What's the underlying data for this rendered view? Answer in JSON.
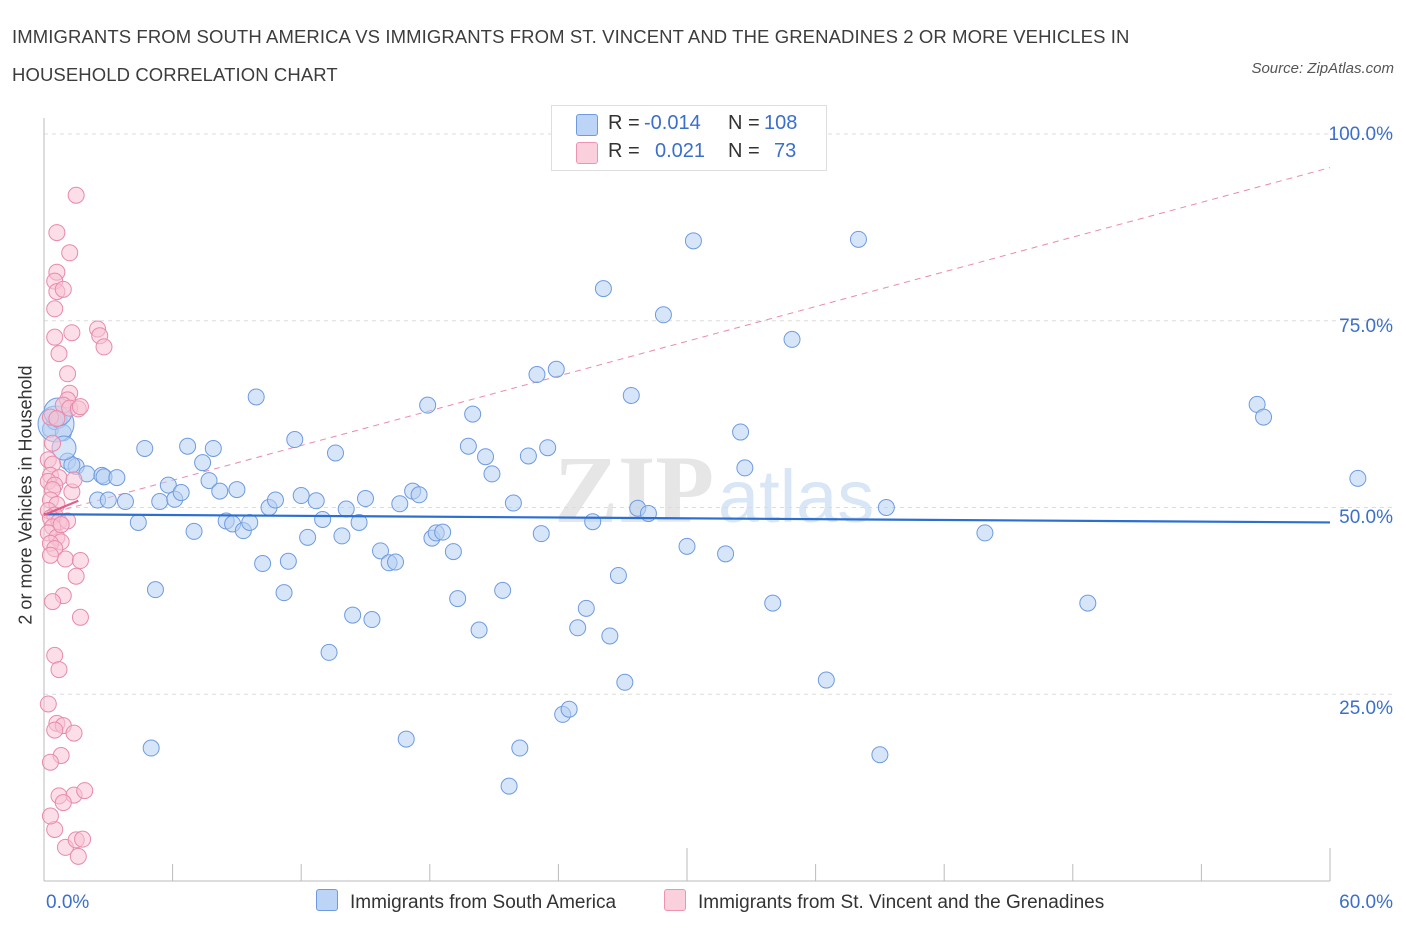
{
  "title": "IMMIGRANTS FROM SOUTH AMERICA VS IMMIGRANTS FROM ST. VINCENT AND THE GRENADINES 2 OR MORE VEHICLES IN HOUSEHOLD CORRELATION CHART",
  "source": "Source: ZipAtlas.com",
  "watermark": {
    "zip": "ZIP",
    "atlas": "atlas"
  },
  "legend": {
    "r_label": "R =",
    "n_label": "N =",
    "rows": [
      {
        "r": "-0.014",
        "n": "108",
        "color": "#aac8f0"
      },
      {
        "r": "0.021",
        "n": "73",
        "color": "#f6b8cc"
      }
    ]
  },
  "colors": {
    "blue": "#5b8fd9",
    "pink": "#e879a0",
    "blue_line": "#2b6fd0",
    "pink_line": "#e0608a",
    "tick": "#3a6fcc"
  },
  "chart_data": {
    "type": "scatter",
    "xlabel": "",
    "ylabel": "2 or more Vehicles in Household",
    "xlim": [
      0,
      60
    ],
    "ylim": [
      0,
      100
    ],
    "x_tick_labels": [
      "0.0%",
      "60.0%"
    ],
    "y_tick_labels": [
      "100.0%",
      "75.0%",
      "50.0%",
      "25.0%"
    ],
    "y_ticks": [
      100,
      75,
      50,
      25
    ],
    "grid": "horizontal dashed",
    "series": [
      {
        "name": "Immigrants from South America",
        "color": "#5b8fd9",
        "trend": {
          "x": [
            0,
            60
          ],
          "y": [
            49.1,
            48.0
          ]
        },
        "points": [
          [
            0.3,
            60.5
          ],
          [
            0.5,
            61.5
          ],
          [
            1.1,
            56.2
          ],
          [
            1.5,
            55.5
          ],
          [
            2.0,
            54.5
          ],
          [
            2.7,
            54.3
          ],
          [
            2.8,
            54.1
          ],
          [
            3.4,
            54.0
          ],
          [
            2.5,
            51.0
          ],
          [
            3.0,
            51.0
          ],
          [
            3.8,
            50.8
          ],
          [
            4.4,
            48.0
          ],
          [
            4.7,
            57.9
          ],
          [
            5.2,
            39.0
          ],
          [
            5.0,
            17.8
          ],
          [
            5.4,
            50.8
          ],
          [
            5.8,
            53.0
          ],
          [
            6.1,
            51.1
          ],
          [
            6.4,
            52.0
          ],
          [
            6.7,
            58.2
          ],
          [
            7.0,
            46.8
          ],
          [
            7.4,
            56.0
          ],
          [
            7.7,
            53.6
          ],
          [
            7.9,
            57.9
          ],
          [
            8.2,
            52.2
          ],
          [
            8.5,
            48.2
          ],
          [
            8.8,
            47.8
          ],
          [
            9.0,
            52.4
          ],
          [
            9.3,
            46.9
          ],
          [
            9.6,
            48.0
          ],
          [
            9.9,
            64.8
          ],
          [
            10.2,
            42.5
          ],
          [
            10.5,
            50.0
          ],
          [
            10.8,
            51.0
          ],
          [
            11.2,
            38.6
          ],
          [
            11.4,
            42.8
          ],
          [
            11.7,
            59.1
          ],
          [
            12.0,
            51.6
          ],
          [
            12.3,
            46.0
          ],
          [
            12.7,
            50.9
          ],
          [
            13.0,
            48.4
          ],
          [
            13.3,
            30.6
          ],
          [
            13.6,
            57.3
          ],
          [
            13.9,
            46.2
          ],
          [
            14.1,
            49.8
          ],
          [
            14.4,
            35.6
          ],
          [
            14.7,
            48.0
          ],
          [
            15.0,
            51.2
          ],
          [
            15.3,
            35.0
          ],
          [
            15.7,
            44.2
          ],
          [
            16.1,
            42.6
          ],
          [
            16.4,
            42.7
          ],
          [
            16.6,
            50.5
          ],
          [
            16.9,
            19.0
          ],
          [
            17.2,
            52.2
          ],
          [
            17.5,
            51.7
          ],
          [
            17.9,
            63.7
          ],
          [
            18.1,
            45.9
          ],
          [
            18.3,
            46.6
          ],
          [
            18.6,
            46.7
          ],
          [
            19.1,
            44.1
          ],
          [
            19.3,
            37.8
          ],
          [
            19.8,
            58.2
          ],
          [
            20.0,
            62.5
          ],
          [
            20.3,
            33.6
          ],
          [
            20.6,
            56.8
          ],
          [
            20.9,
            54.5
          ],
          [
            21.4,
            38.9
          ],
          [
            21.7,
            12.7
          ],
          [
            21.9,
            50.6
          ],
          [
            22.2,
            17.8
          ],
          [
            22.6,
            56.9
          ],
          [
            23.0,
            67.8
          ],
          [
            23.2,
            46.5
          ],
          [
            23.5,
            58.0
          ],
          [
            23.9,
            68.5
          ],
          [
            24.2,
            22.3
          ],
          [
            24.5,
            23.0
          ],
          [
            24.9,
            33.9
          ],
          [
            25.3,
            36.5
          ],
          [
            25.6,
            48.1
          ],
          [
            26.1,
            79.3
          ],
          [
            26.4,
            32.8
          ],
          [
            26.8,
            40.9
          ],
          [
            27.1,
            26.6
          ],
          [
            27.4,
            65.0
          ],
          [
            27.7,
            49.9
          ],
          [
            28.2,
            49.2
          ],
          [
            28.9,
            75.8
          ],
          [
            30.0,
            44.8
          ],
          [
            30.3,
            85.7
          ],
          [
            31.8,
            43.8
          ],
          [
            32.5,
            60.1
          ],
          [
            32.7,
            55.3
          ],
          [
            34.0,
            37.2
          ],
          [
            34.9,
            72.5
          ],
          [
            36.5,
            26.9
          ],
          [
            38.0,
            85.9
          ],
          [
            39.0,
            16.9
          ],
          [
            39.3,
            50.0
          ],
          [
            43.9,
            46.6
          ],
          [
            48.7,
            37.2
          ],
          [
            56.6,
            63.8
          ],
          [
            56.9,
            62.1
          ],
          [
            61.3,
            53.9
          ],
          [
            0.7,
            61.7
          ],
          [
            0.9,
            60.0
          ],
          [
            1.3,
            55.7
          ]
        ]
      },
      {
        "name": "Immigrants from St. Vincent and the Grenadines",
        "color": "#e879a0",
        "trend": {
          "x": [
            0,
            1.6
          ],
          "y": [
            49.0,
            50.9
          ]
        },
        "trend_extended": {
          "x": [
            0,
            60
          ],
          "y": [
            49.0,
            95.5
          ]
        },
        "points": [
          [
            1.5,
            91.8
          ],
          [
            0.6,
            86.8
          ],
          [
            1.2,
            84.1
          ],
          [
            0.6,
            81.5
          ],
          [
            0.5,
            80.3
          ],
          [
            0.6,
            78.9
          ],
          [
            0.9,
            79.2
          ],
          [
            0.5,
            76.6
          ],
          [
            1.3,
            73.4
          ],
          [
            2.5,
            73.9
          ],
          [
            2.6,
            73.0
          ],
          [
            2.8,
            71.5
          ],
          [
            0.5,
            72.8
          ],
          [
            0.7,
            70.6
          ],
          [
            1.1,
            67.9
          ],
          [
            1.2,
            65.3
          ],
          [
            1.1,
            64.4
          ],
          [
            0.9,
            63.7
          ],
          [
            1.2,
            63.3
          ],
          [
            1.6,
            63.2
          ],
          [
            1.7,
            63.5
          ],
          [
            0.3,
            62.1
          ],
          [
            0.6,
            61.9
          ],
          [
            0.4,
            58.6
          ],
          [
            0.2,
            56.4
          ],
          [
            0.4,
            55.8
          ],
          [
            0.3,
            54.3
          ],
          [
            0.7,
            54.0
          ],
          [
            0.2,
            53.5
          ],
          [
            0.5,
            53.0
          ],
          [
            0.4,
            52.4
          ],
          [
            1.3,
            52.1
          ],
          [
            0.3,
            51.0
          ],
          [
            0.6,
            50.4
          ],
          [
            0.2,
            49.6
          ],
          [
            0.5,
            49.0
          ],
          [
            0.3,
            48.6
          ],
          [
            0.7,
            48.1
          ],
          [
            0.4,
            47.4
          ],
          [
            0.2,
            46.6
          ],
          [
            0.6,
            46.0
          ],
          [
            0.8,
            45.4
          ],
          [
            0.3,
            45.2
          ],
          [
            0.5,
            44.5
          ],
          [
            1.0,
            43.1
          ],
          [
            0.3,
            43.6
          ],
          [
            1.7,
            42.9
          ],
          [
            1.5,
            40.8
          ],
          [
            0.9,
            38.2
          ],
          [
            0.4,
            37.4
          ],
          [
            1.7,
            35.3
          ],
          [
            0.5,
            30.2
          ],
          [
            0.7,
            28.3
          ],
          [
            0.6,
            21.1
          ],
          [
            0.9,
            20.8
          ],
          [
            0.5,
            20.2
          ],
          [
            1.4,
            19.8
          ],
          [
            0.8,
            16.8
          ],
          [
            0.3,
            15.9
          ],
          [
            0.7,
            11.4
          ],
          [
            1.4,
            11.5
          ],
          [
            1.9,
            12.1
          ],
          [
            0.5,
            6.9
          ],
          [
            1.0,
            4.5
          ],
          [
            1.5,
            5.5
          ],
          [
            1.8,
            5.6
          ],
          [
            1.6,
            3.3
          ],
          [
            0.9,
            10.5
          ],
          [
            0.2,
            23.7
          ],
          [
            0.3,
            8.7
          ],
          [
            1.1,
            48.2
          ],
          [
            0.8,
            47.7
          ],
          [
            1.4,
            53.7
          ]
        ]
      }
    ]
  }
}
